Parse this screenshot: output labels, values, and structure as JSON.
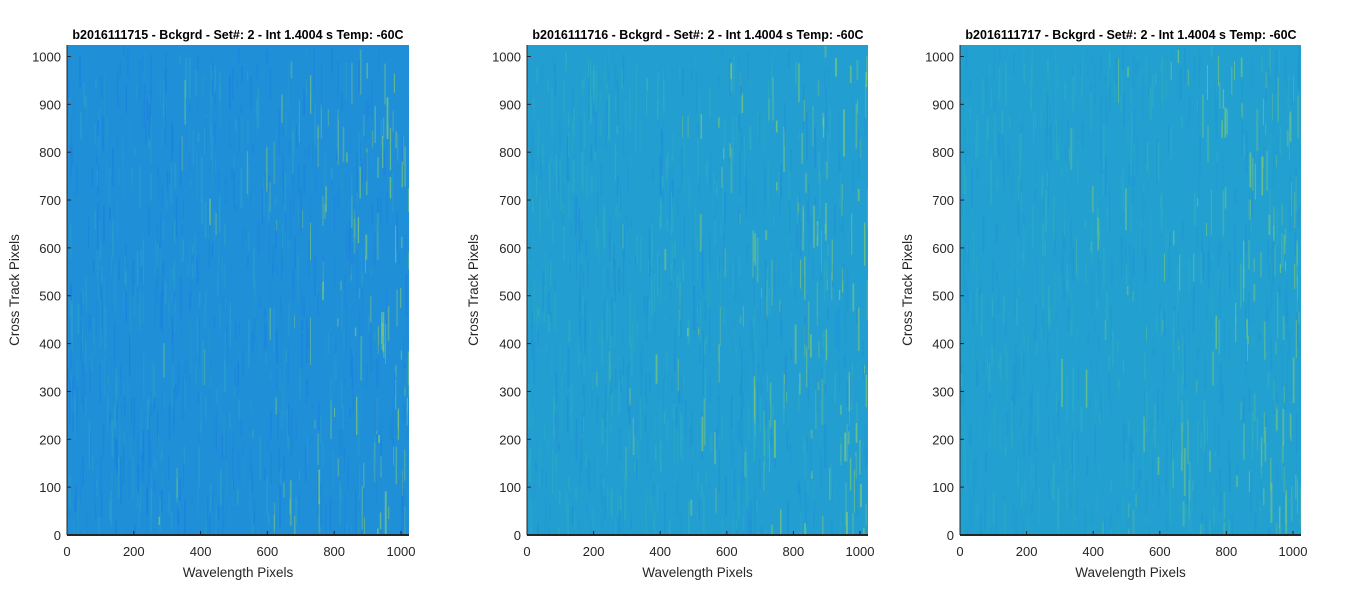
{
  "chart_data": [
    {
      "type": "heatmap",
      "title": "b2016111715 - Bckgrd - Set#: 2 - Int 1.4004 s Temp: -60C",
      "xlabel": "Wavelength Pixels",
      "ylabel": "Cross Track Pixels",
      "xlim": [
        0,
        1024
      ],
      "ylim": [
        0,
        1024
      ],
      "x_ticks": [
        0,
        200,
        400,
        600,
        800,
        1000
      ],
      "y_ticks": [
        0,
        100,
        200,
        300,
        400,
        500,
        600,
        700,
        800,
        900,
        1000
      ],
      "colormap": "parula",
      "base_color": "#1f8fd8",
      "note_colors": [
        "#1a7fe0",
        "#2aa3c8",
        "#8ccf6a"
      ]
    },
    {
      "type": "heatmap",
      "title": "b2016111716 - Bckgrd - Set#: 2 - Int 1.4004 s Temp: -60C",
      "xlabel": "Wavelength Pixels",
      "ylabel": "Cross Track Pixels",
      "xlim": [
        0,
        1024
      ],
      "ylim": [
        0,
        1024
      ],
      "x_ticks": [
        0,
        200,
        400,
        600,
        800,
        1000
      ],
      "y_ticks": [
        0,
        100,
        200,
        300,
        400,
        500,
        600,
        700,
        800,
        900,
        1000
      ],
      "colormap": "parula",
      "base_color": "#239ed0",
      "note_colors": [
        "#1f8fd8",
        "#2fb0c0",
        "#8ccf6a"
      ]
    },
    {
      "type": "heatmap",
      "title": "b2016111717 - Bckgrd - Set#: 2 - Int 1.4004 s Temp: -60C",
      "xlabel": "Wavelength Pixels",
      "ylabel": "Cross Track Pixels",
      "xlim": [
        0,
        1024
      ],
      "ylim": [
        0,
        1024
      ],
      "x_ticks": [
        0,
        200,
        400,
        600,
        800,
        1000
      ],
      "y_ticks": [
        0,
        100,
        200,
        300,
        400,
        500,
        600,
        700,
        800,
        900,
        1000
      ],
      "colormap": "parula",
      "base_color": "#22a0d0",
      "note_colors": [
        "#1f95d4",
        "#2fb0c0",
        "#7ecb72"
      ]
    }
  ]
}
